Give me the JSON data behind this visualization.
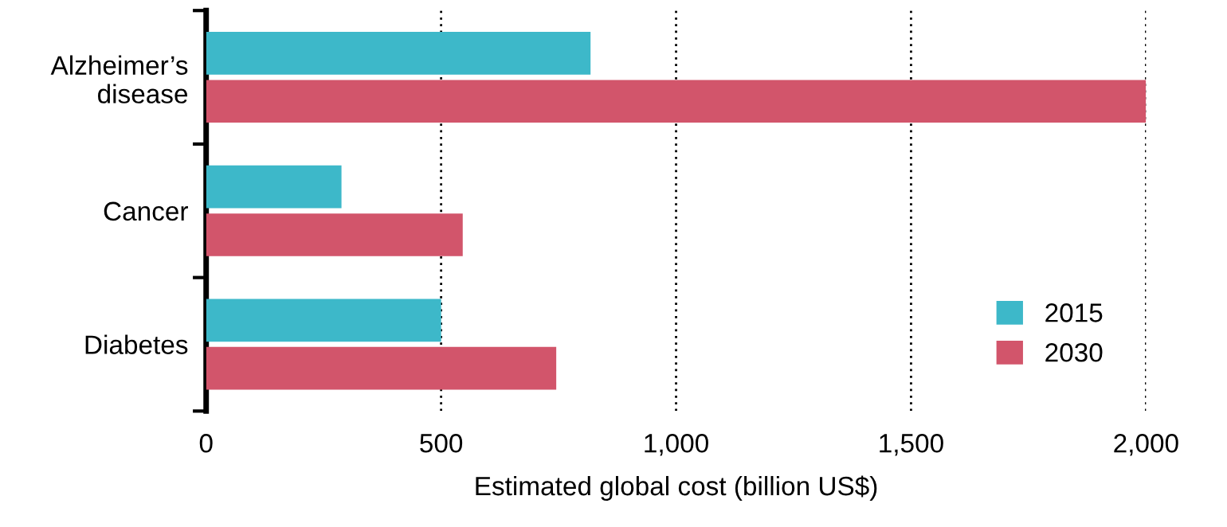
{
  "chart_data": {
    "type": "bar",
    "orientation": "horizontal",
    "categories": [
      "Alzheimer’s\ndisease",
      "Cancer",
      "Diabetes"
    ],
    "series": [
      {
        "name": "2015",
        "color": "#3db8c9",
        "values": [
          818,
          288,
          500
        ]
      },
      {
        "name": "2030",
        "color": "#d2556b",
        "values": [
          2000,
          546,
          745
        ]
      }
    ],
    "xlabel": "Estimated global cost (billion US$)",
    "xlim": [
      0,
      2000
    ],
    "xticks": [
      0,
      500,
      {
        "value": 1000,
        "label": "1,000"
      },
      {
        "value": 1500,
        "label": "1,500"
      },
      {
        "value": 2000,
        "label": "2,000"
      }
    ],
    "grid": "x",
    "legend": "bottom right"
  }
}
